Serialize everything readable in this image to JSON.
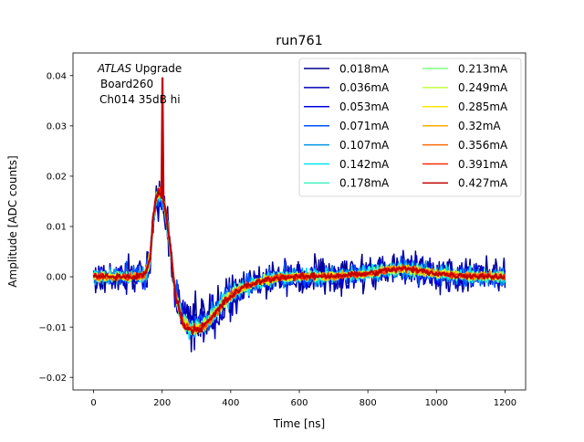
{
  "chart_data": {
    "type": "line",
    "title": "run761",
    "xlabel": "Time [ns]",
    "ylabel": "Amplitude [ADC counts]",
    "xlim": [
      -60,
      1260
    ],
    "ylim": [
      -0.0225,
      0.0445
    ],
    "xticks": [
      0,
      200,
      400,
      600,
      800,
      1000,
      1200
    ],
    "xtick_labels": [
      "0",
      "200",
      "400",
      "600",
      "800",
      "1000",
      "1200"
    ],
    "yticks": [
      -0.02,
      -0.01,
      0.0,
      0.01,
      0.02,
      0.03,
      0.04
    ],
    "ytick_labels": [
      "−0.02",
      "−0.01",
      "0.00",
      "0.01",
      "0.02",
      "0.03",
      "0.04"
    ],
    "grid": false,
    "legend_position": "top-right",
    "annotation": {
      "line1_italic": "ATLAS",
      "line1_rest": " Upgrade",
      "line2": "Board260",
      "line3": "Ch014 35dB hi"
    },
    "x": [
      0,
      25,
      50,
      75,
      100,
      125,
      150,
      165,
      175,
      185,
      195,
      200,
      205,
      215,
      225,
      240,
      260,
      280,
      300,
      320,
      340,
      360,
      380,
      400,
      430,
      460,
      500,
      550,
      600,
      650,
      700,
      750,
      800,
      850,
      880,
      900,
      930,
      960,
      1000,
      1050,
      1100,
      1150,
      1200
    ],
    "series": [
      {
        "name": "0.018mA",
        "color": "#00008f",
        "noise": 0.0055,
        "values": [
          0.0,
          0.0,
          0.0,
          0.0,
          0.0,
          0.0,
          0.0004,
          0.0035,
          0.011,
          0.0148,
          0.0152,
          0.0148,
          0.0135,
          0.0095,
          0.004,
          -0.0035,
          -0.0083,
          -0.0096,
          -0.0095,
          -0.009,
          -0.0078,
          -0.0063,
          -0.0047,
          -0.0035,
          -0.0022,
          -0.0014,
          -0.0006,
          -0.0001,
          0.0,
          0.0001,
          0.0002,
          0.0004,
          0.0006,
          0.0012,
          0.0015,
          0.0016,
          0.0014,
          0.0011,
          0.0007,
          0.0003,
          0.0002,
          0.0001,
          0.0
        ]
      },
      {
        "name": "0.036mA",
        "color": "#0000b4",
        "noise": 0.0045,
        "values": [
          0.0,
          0.0,
          0.0,
          0.0,
          0.0,
          0.0,
          0.0004,
          0.0036,
          0.0113,
          0.0151,
          0.0155,
          0.0151,
          0.0138,
          0.0097,
          0.0042,
          -0.0035,
          -0.0084,
          -0.0097,
          -0.0096,
          -0.0091,
          -0.0079,
          -0.0064,
          -0.0048,
          -0.0036,
          -0.0022,
          -0.0014,
          -0.0006,
          -0.0001,
          0.0,
          0.0001,
          0.0002,
          0.0004,
          0.0006,
          0.0012,
          0.0015,
          0.0016,
          0.0014,
          0.0011,
          0.0007,
          0.0003,
          0.0002,
          0.0001,
          0.0
        ]
      },
      {
        "name": "0.053mA",
        "color": "#0000e0",
        "noise": 0.0038,
        "values": [
          0.0,
          0.0,
          0.0,
          0.0,
          0.0,
          0.0,
          0.0004,
          0.0036,
          0.0115,
          0.0153,
          0.0157,
          0.0153,
          0.014,
          0.0099,
          0.0043,
          -0.0036,
          -0.0085,
          -0.0098,
          -0.0097,
          -0.0092,
          -0.008,
          -0.0065,
          -0.0048,
          -0.0036,
          -0.0022,
          -0.0014,
          -0.0006,
          -0.0001,
          0.0,
          0.0001,
          0.0002,
          0.0004,
          0.0006,
          0.0012,
          0.0015,
          0.0016,
          0.0014,
          0.0011,
          0.0007,
          0.0003,
          0.0002,
          0.0001,
          0.0
        ]
      },
      {
        "name": "0.071mA",
        "color": "#0050ff",
        "noise": 0.0032,
        "values": [
          0.0,
          0.0,
          0.0,
          0.0,
          0.0,
          0.0,
          0.0004,
          0.0037,
          0.0117,
          0.0155,
          0.0159,
          0.0155,
          0.0142,
          0.01,
          0.0044,
          -0.0036,
          -0.0086,
          -0.0099,
          -0.0098,
          -0.0093,
          -0.0081,
          -0.0065,
          -0.0049,
          -0.0036,
          -0.0023,
          -0.0014,
          -0.0006,
          -0.0001,
          0.0,
          0.0001,
          0.0002,
          0.0004,
          0.0006,
          0.0012,
          0.0015,
          0.0016,
          0.0014,
          0.0011,
          0.0007,
          0.0003,
          0.0002,
          0.0001,
          0.0
        ]
      },
      {
        "name": "0.107mA",
        "color": "#0096e6",
        "noise": 0.0026,
        "values": [
          0.0,
          0.0,
          0.0,
          0.0,
          0.0,
          0.0,
          0.0004,
          0.0037,
          0.0118,
          0.0157,
          0.0161,
          0.0157,
          0.0144,
          0.0101,
          0.0045,
          -0.0037,
          -0.0087,
          -0.01,
          -0.0099,
          -0.0094,
          -0.0082,
          -0.0066,
          -0.0049,
          -0.0037,
          -0.0023,
          -0.0014,
          -0.0006,
          -0.0001,
          0.0,
          0.0001,
          0.0002,
          0.0004,
          0.0006,
          0.0012,
          0.0015,
          0.0016,
          0.0014,
          0.0011,
          0.0007,
          0.0003,
          0.0002,
          0.0001,
          0.0
        ]
      },
      {
        "name": "0.142mA",
        "color": "#00e5ee",
        "noise": 0.0022,
        "values": [
          0.0,
          0.0,
          0.0,
          0.0,
          0.0,
          0.0,
          0.0004,
          0.0038,
          0.012,
          0.0159,
          0.0163,
          0.0159,
          0.0146,
          0.0103,
          0.0046,
          -0.0037,
          -0.0088,
          -0.0101,
          -0.01,
          -0.0095,
          -0.0083,
          -0.0067,
          -0.005,
          -0.0037,
          -0.0023,
          -0.0014,
          -0.0006,
          -0.0001,
          0.0,
          0.0001,
          0.0002,
          0.0004,
          0.0006,
          0.0012,
          0.0015,
          0.0016,
          0.0014,
          0.0011,
          0.0007,
          0.0003,
          0.0002,
          0.0001,
          0.0
        ]
      },
      {
        "name": "0.178mA",
        "color": "#40f2c0",
        "noise": 0.0018,
        "values": [
          0.0,
          0.0,
          0.0,
          0.0,
          0.0,
          0.0,
          0.0004,
          0.0038,
          0.0121,
          0.016,
          0.0164,
          0.016,
          0.0147,
          0.0104,
          0.0046,
          -0.0038,
          -0.0089,
          -0.0102,
          -0.0101,
          -0.0096,
          -0.0084,
          -0.0067,
          -0.005,
          -0.0037,
          -0.0023,
          -0.0015,
          -0.0006,
          -0.0001,
          0.0,
          0.0001,
          0.0002,
          0.0004,
          0.0006,
          0.0012,
          0.0015,
          0.0016,
          0.0014,
          0.0011,
          0.0007,
          0.0003,
          0.0002,
          0.0001,
          0.0
        ]
      },
      {
        "name": "0.213mA",
        "color": "#80ff80",
        "noise": 0.0016,
        "values": [
          0.0,
          0.0,
          0.0,
          0.0,
          0.0,
          0.0,
          0.0004,
          0.0038,
          0.0122,
          0.0161,
          0.0165,
          0.0161,
          0.0148,
          0.0105,
          0.0047,
          -0.0038,
          -0.0089,
          -0.0102,
          -0.0101,
          -0.0096,
          -0.0084,
          -0.0067,
          -0.005,
          -0.0037,
          -0.0023,
          -0.0015,
          -0.0006,
          -0.0001,
          0.0,
          0.0001,
          0.0002,
          0.0004,
          0.0006,
          0.0012,
          0.0015,
          0.0016,
          0.0014,
          0.0011,
          0.0007,
          0.0003,
          0.0002,
          0.0001,
          0.0
        ]
      },
      {
        "name": "0.249mA",
        "color": "#c0ff40",
        "noise": 0.0014,
        "values": [
          0.0,
          0.0,
          0.0,
          0.0,
          0.0,
          0.0,
          0.0004,
          0.0038,
          0.0122,
          0.0162,
          0.0166,
          0.0162,
          0.0149,
          0.0105,
          0.0047,
          -0.0038,
          -0.009,
          -0.0103,
          -0.0102,
          -0.0097,
          -0.0085,
          -0.0068,
          -0.005,
          -0.0038,
          -0.0023,
          -0.0015,
          -0.0006,
          -0.0001,
          0.0,
          0.0001,
          0.0002,
          0.0004,
          0.0006,
          0.0012,
          0.0015,
          0.0016,
          0.0014,
          0.0011,
          0.0007,
          0.0003,
          0.0002,
          0.0001,
          0.0
        ]
      },
      {
        "name": "0.285mA",
        "color": "#ffe600",
        "noise": 0.0013,
        "values": [
          0.0,
          0.0,
          0.0,
          0.0,
          0.0,
          0.0,
          0.0004,
          0.0038,
          0.0123,
          0.0163,
          0.0167,
          0.0163,
          0.015,
          0.0106,
          0.0047,
          -0.0038,
          -0.009,
          -0.0103,
          -0.0102,
          -0.0097,
          -0.0085,
          -0.0068,
          -0.0051,
          -0.0038,
          -0.0023,
          -0.0015,
          -0.0006,
          -0.0001,
          0.0,
          0.0001,
          0.0002,
          0.0004,
          0.0006,
          0.0012,
          0.0015,
          0.0016,
          0.0014,
          0.0011,
          0.0007,
          0.0003,
          0.0002,
          0.0001,
          0.0
        ]
      },
      {
        "name": "0.32mA",
        "color": "#ffaa00",
        "noise": 0.0012,
        "values": [
          0.0,
          0.0,
          0.0,
          0.0,
          0.0,
          0.0,
          0.0004,
          0.0039,
          0.0123,
          0.0163,
          0.0167,
          0.0163,
          0.015,
          0.0106,
          0.0048,
          -0.0039,
          -0.0091,
          -0.0104,
          -0.0103,
          -0.0098,
          -0.0085,
          -0.0068,
          -0.0051,
          -0.0038,
          -0.0023,
          -0.0015,
          -0.0006,
          -0.0001,
          0.0,
          0.0001,
          0.0002,
          0.0004,
          0.0006,
          0.0012,
          0.0015,
          0.0016,
          0.0014,
          0.0011,
          0.0007,
          0.0003,
          0.0002,
          0.0001,
          0.0
        ]
      },
      {
        "name": "0.356mA",
        "color": "#ff6a00",
        "noise": 0.0011,
        "values": [
          0.0,
          0.0,
          0.0,
          0.0,
          0.0,
          0.0,
          0.0004,
          0.0039,
          0.0124,
          0.0164,
          0.0168,
          0.0164,
          0.0151,
          0.0107,
          0.0048,
          -0.0039,
          -0.0091,
          -0.0104,
          -0.0103,
          -0.0098,
          -0.0086,
          -0.0069,
          -0.0051,
          -0.0038,
          -0.0023,
          -0.0015,
          -0.0006,
          -0.0001,
          0.0,
          0.0001,
          0.0002,
          0.0004,
          0.0006,
          0.0012,
          0.0015,
          0.0016,
          0.0014,
          0.0011,
          0.0007,
          0.0003,
          0.0002,
          0.0001,
          0.0
        ]
      },
      {
        "name": "0.391mA",
        "color": "#ff2a00",
        "noise": 0.001,
        "values": [
          0.0,
          0.0,
          0.0,
          0.0,
          0.0,
          0.0,
          0.0004,
          0.0039,
          0.0124,
          0.0164,
          0.0168,
          0.0164,
          0.0151,
          0.0107,
          0.0048,
          -0.0039,
          -0.0091,
          -0.0104,
          -0.0103,
          -0.0098,
          -0.0086,
          -0.0069,
          -0.0051,
          -0.0038,
          -0.0023,
          -0.0015,
          -0.0006,
          -0.0001,
          0.0,
          0.0001,
          0.0002,
          0.0004,
          0.0006,
          0.0012,
          0.0015,
          0.0016,
          0.0014,
          0.0011,
          0.0007,
          0.0003,
          0.0002,
          0.0001,
          0.0
        ]
      },
      {
        "name": "0.427mA",
        "color": "#c00000",
        "noise": 0.0009,
        "values": [
          0.0,
          0.0,
          0.0,
          0.0,
          0.0,
          0.0,
          0.0004,
          0.0039,
          0.0125,
          0.0165,
          0.0169,
          0.0165,
          0.0152,
          0.0108,
          0.0049,
          -0.0039,
          -0.0092,
          -0.0105,
          -0.0104,
          -0.0099,
          -0.0086,
          -0.0069,
          -0.0052,
          -0.0039,
          -0.0024,
          -0.0015,
          -0.0006,
          -0.0001,
          0.0,
          0.0001,
          0.0002,
          0.0004,
          0.0006,
          0.0012,
          0.0015,
          0.0016,
          0.0014,
          0.0011,
          0.0007,
          0.0003,
          0.0002,
          0.0001,
          0.0
        ],
        "spike": {
          "x": 200,
          "y": 0.0395
        }
      }
    ]
  }
}
